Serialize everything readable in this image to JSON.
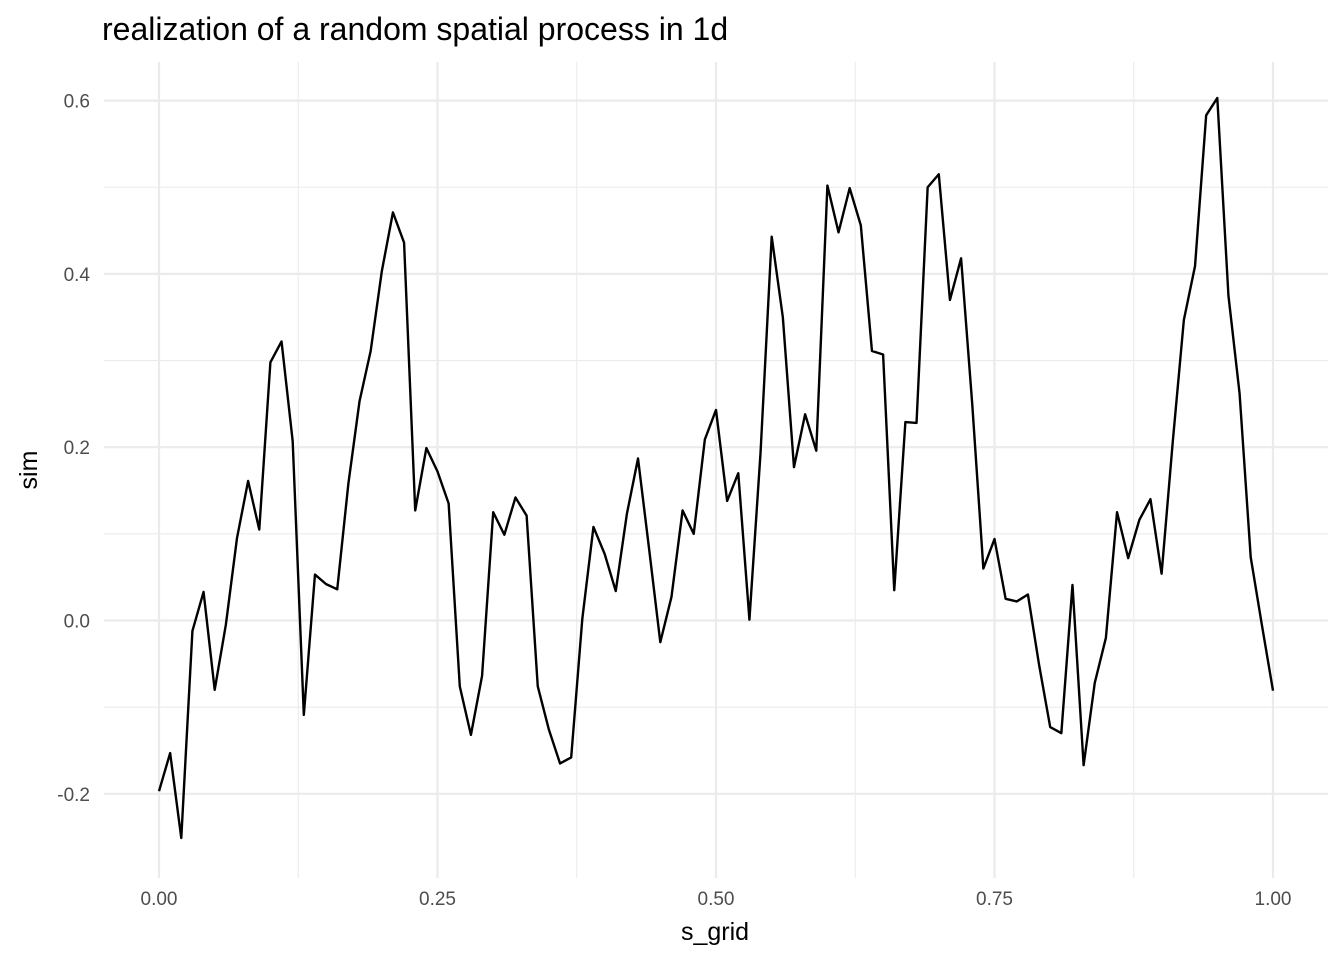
{
  "chart_data": {
    "type": "line",
    "title": "realization of a random spatial process in 1d",
    "xlabel": "s_grid",
    "ylabel": "sim",
    "xlim": [
      0,
      1
    ],
    "ylim": [
      -0.2,
      0.6
    ],
    "x_major_ticks": [
      0.0,
      0.25,
      0.5,
      0.75,
      1.0
    ],
    "x_tick_labels": [
      "0.00",
      "0.25",
      "0.50",
      "0.75",
      "1.00"
    ],
    "x_minor_ticks": [
      0.125,
      0.375,
      0.625,
      0.875
    ],
    "y_major_ticks": [
      -0.2,
      0.0,
      0.2,
      0.4,
      0.6
    ],
    "y_tick_labels": [
      "-0.2",
      "0.0",
      "0.2",
      "0.4",
      "0.6"
    ],
    "y_minor_ticks": [
      -0.1,
      0.1,
      0.3,
      0.5
    ],
    "grid": true,
    "legend": "none",
    "line_color": "#000000",
    "x": [
      0.0,
      0.01,
      0.02,
      0.03,
      0.04,
      0.05,
      0.06,
      0.07,
      0.08,
      0.09,
      0.1,
      0.11,
      0.12,
      0.13,
      0.14,
      0.15,
      0.16,
      0.17,
      0.18,
      0.19,
      0.2,
      0.21,
      0.22,
      0.23,
      0.24,
      0.25,
      0.26,
      0.27,
      0.28,
      0.29,
      0.3,
      0.31,
      0.32,
      0.33,
      0.34,
      0.35,
      0.36,
      0.37,
      0.38,
      0.39,
      0.4,
      0.41,
      0.42,
      0.43,
      0.44,
      0.45,
      0.46,
      0.47,
      0.48,
      0.49,
      0.5,
      0.51,
      0.52,
      0.53,
      0.54,
      0.55,
      0.56,
      0.57,
      0.58,
      0.59,
      0.6,
      0.61,
      0.62,
      0.63,
      0.64,
      0.65,
      0.66,
      0.67,
      0.68,
      0.69,
      0.7,
      0.71,
      0.72,
      0.73,
      0.74,
      0.75,
      0.76,
      0.77,
      0.78,
      0.79,
      0.8,
      0.81,
      0.82,
      0.83,
      0.84,
      0.85,
      0.86,
      0.87,
      0.88,
      0.89,
      0.9,
      0.91,
      0.92,
      0.93,
      0.94,
      0.95,
      0.96,
      0.97,
      0.98,
      0.99,
      1.0
    ],
    "y": [
      -0.197,
      -0.153,
      -0.251,
      -0.012,
      0.033,
      -0.08,
      -0.005,
      0.095,
      0.161,
      0.105,
      0.298,
      0.322,
      0.207,
      -0.109,
      0.053,
      0.042,
      0.036,
      0.158,
      0.253,
      0.311,
      0.403,
      0.471,
      0.436,
      0.127,
      0.199,
      0.172,
      0.135,
      -0.076,
      -0.132,
      -0.064,
      0.125,
      0.099,
      0.142,
      0.121,
      -0.076,
      -0.126,
      -0.165,
      -0.158,
      0.002,
      0.108,
      0.077,
      0.034,
      0.123,
      0.187,
      0.082,
      -0.025,
      0.027,
      0.127,
      0.1,
      0.209,
      0.243,
      0.138,
      0.17,
      0.001,
      0.194,
      0.443,
      0.35,
      0.177,
      0.238,
      0.196,
      0.502,
      0.448,
      0.499,
      0.456,
      0.311,
      0.307,
      0.035,
      0.229,
      0.228,
      0.5,
      0.515,
      0.37,
      0.418,
      0.25,
      0.06,
      0.094,
      0.025,
      0.022,
      0.03,
      -0.051,
      -0.123,
      -0.13,
      0.041,
      -0.167,
      -0.072,
      -0.02,
      0.125,
      0.072,
      0.116,
      0.14,
      0.054,
      0.206,
      0.347,
      0.409,
      0.583,
      0.603,
      0.375,
      0.262,
      0.073,
      -0.005,
      -0.081
    ]
  }
}
